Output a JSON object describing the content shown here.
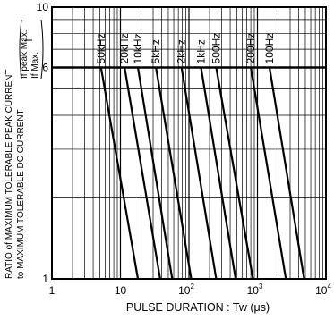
{
  "chart_data": {
    "type": "line",
    "xlabel": "PULSE DURATION : Tw (μs)",
    "ylabel_lines": [
      "RATIO of MAXIMUM TOLERABLE PEAK CURRENT",
      "to MAXIMUM TOLERABLE DC CURRENT"
    ],
    "ylabel_bracket": [
      "If peak Max.",
      "If Max."
    ],
    "x_scale": "log",
    "y_scale": "log",
    "xlim": [
      1,
      10000
    ],
    "ylim": [
      1,
      10
    ],
    "x_ticks": [
      {
        "value": 1,
        "base": "1",
        "exp": ""
      },
      {
        "value": 10,
        "base": "10",
        "exp": ""
      },
      {
        "value": 100,
        "base": "10",
        "exp": "2"
      },
      {
        "value": 1000,
        "base": "10",
        "exp": "3"
      },
      {
        "value": 10000,
        "base": "10",
        "exp": "4"
      }
    ],
    "y_ticks": [
      {
        "value": 1,
        "label": "1"
      },
      {
        "value": 6,
        "label": "6"
      },
      {
        "value": 10,
        "label": "10"
      }
    ],
    "y_cap": 6,
    "grid": true,
    "series": [
      {
        "name": "50kHz",
        "start_x": 5.2,
        "end_x": 18
      },
      {
        "name": "20kHz",
        "start_x": 11.5,
        "end_x": 38
      },
      {
        "name": "10kHz",
        "start_x": 18,
        "end_x": 57
      },
      {
        "name": "5kHz",
        "start_x": 33,
        "end_x": 108
      },
      {
        "name": "2kHz",
        "start_x": 78,
        "end_x": 250
      },
      {
        "name": "1kHz",
        "start_x": 150,
        "end_x": 480
      },
      {
        "name": "500Hz",
        "start_x": 250,
        "end_x": 860
      },
      {
        "name": "200Hz",
        "start_x": 800,
        "end_x": 2600
      },
      {
        "name": "100Hz",
        "start_x": 1500,
        "end_x": 4800
      }
    ]
  }
}
